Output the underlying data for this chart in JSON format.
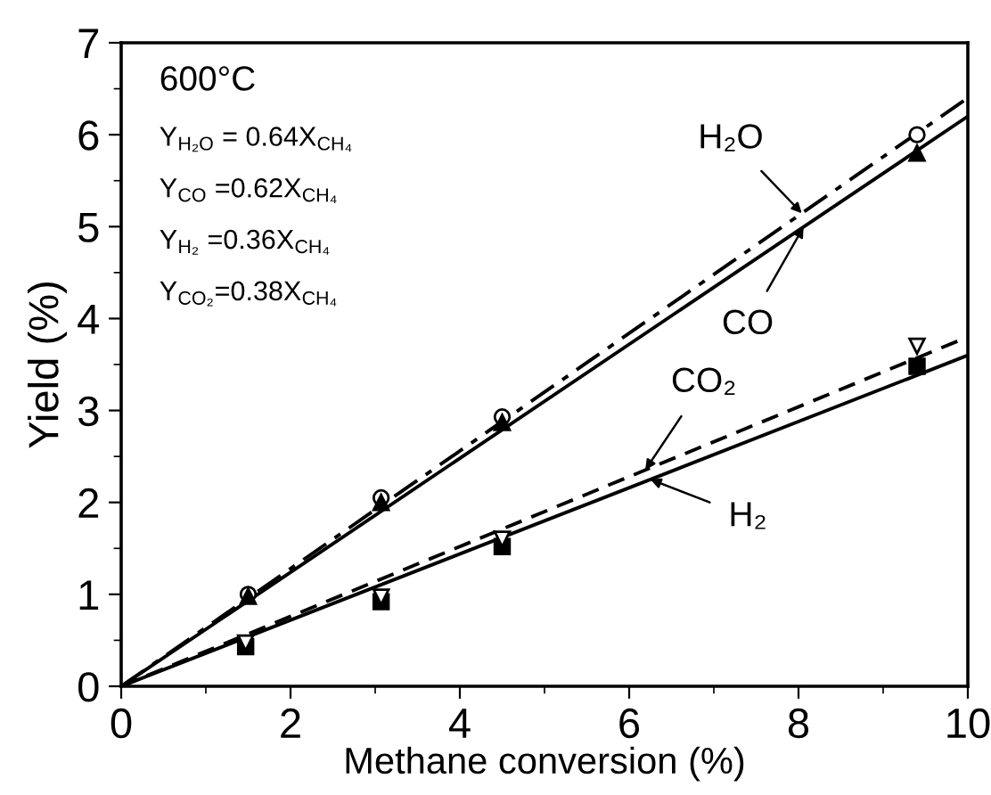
{
  "chart_data": {
    "type": "scatter",
    "xlabel": "Methane conversion (%)",
    "ylabel": "Yield (%)",
    "xlim": [
      0,
      10
    ],
    "ylim": [
      0,
      7
    ],
    "xticks": [
      0,
      2,
      4,
      6,
      8,
      10
    ],
    "yticks": [
      0,
      1,
      2,
      3,
      4,
      5,
      6,
      7
    ],
    "grid": false,
    "annotations": [
      "600°C",
      "Y$_{H₂O}$ = 0.64X$_{CH₄}$",
      "Y$_{CO}$ =0.62X$_{CH₄}$",
      "Y$_{H₂}$ =0.36X$_{CH₄}$",
      "Y$_{CO₂}$=0.38X$_{CH₄}$"
    ],
    "series": [
      {
        "marker": "circle",
        "color": "#000000",
        "x": [
          1.5,
          3.07,
          4.5,
          9.4
        ],
        "values": [
          1.0,
          2.05,
          2.93,
          6.0
        ]
      },
      {
        "marker": "triangle",
        "color": "#000000",
        "x": [
          1.5,
          3.07,
          4.5,
          9.4
        ],
        "values": [
          0.98,
          2.0,
          2.87,
          5.8
        ]
      },
      {
        "marker": "square",
        "color": "#000000",
        "x": [
          1.47,
          3.07,
          4.5,
          9.4
        ],
        "values": [
          0.43,
          0.92,
          1.52,
          3.48
        ]
      },
      {
        "marker": "triangle_down",
        "color": "#000000",
        "x": [
          1.47,
          3.07,
          4.5,
          9.4
        ],
        "values": [
          0.47,
          0.97,
          1.6,
          3.7
        ]
      },
      {
        "type": "line",
        "name": "H₂O",
        "line_style": "dashdot",
        "color": "#000000",
        "x": [
          0,
          10
        ],
        "values": [
          0,
          6.4
        ]
      },
      {
        "type": "line",
        "name": "CO",
        "line_style": "solid",
        "color": "#000000",
        "x": [
          0,
          10
        ],
        "values": [
          0,
          6.2
        ]
      },
      {
        "type": "line",
        "name": "CO₂",
        "line_style": "dashed",
        "color": "#000000",
        "x": [
          0,
          10
        ],
        "values": [
          0,
          3.8
        ]
      },
      {
        "type": "line",
        "name": "H₂",
        "line_style": "solid",
        "color": "#000000",
        "x": [
          0,
          10
        ],
        "values": [
          0,
          3.6
        ]
      }
    ]
  }
}
